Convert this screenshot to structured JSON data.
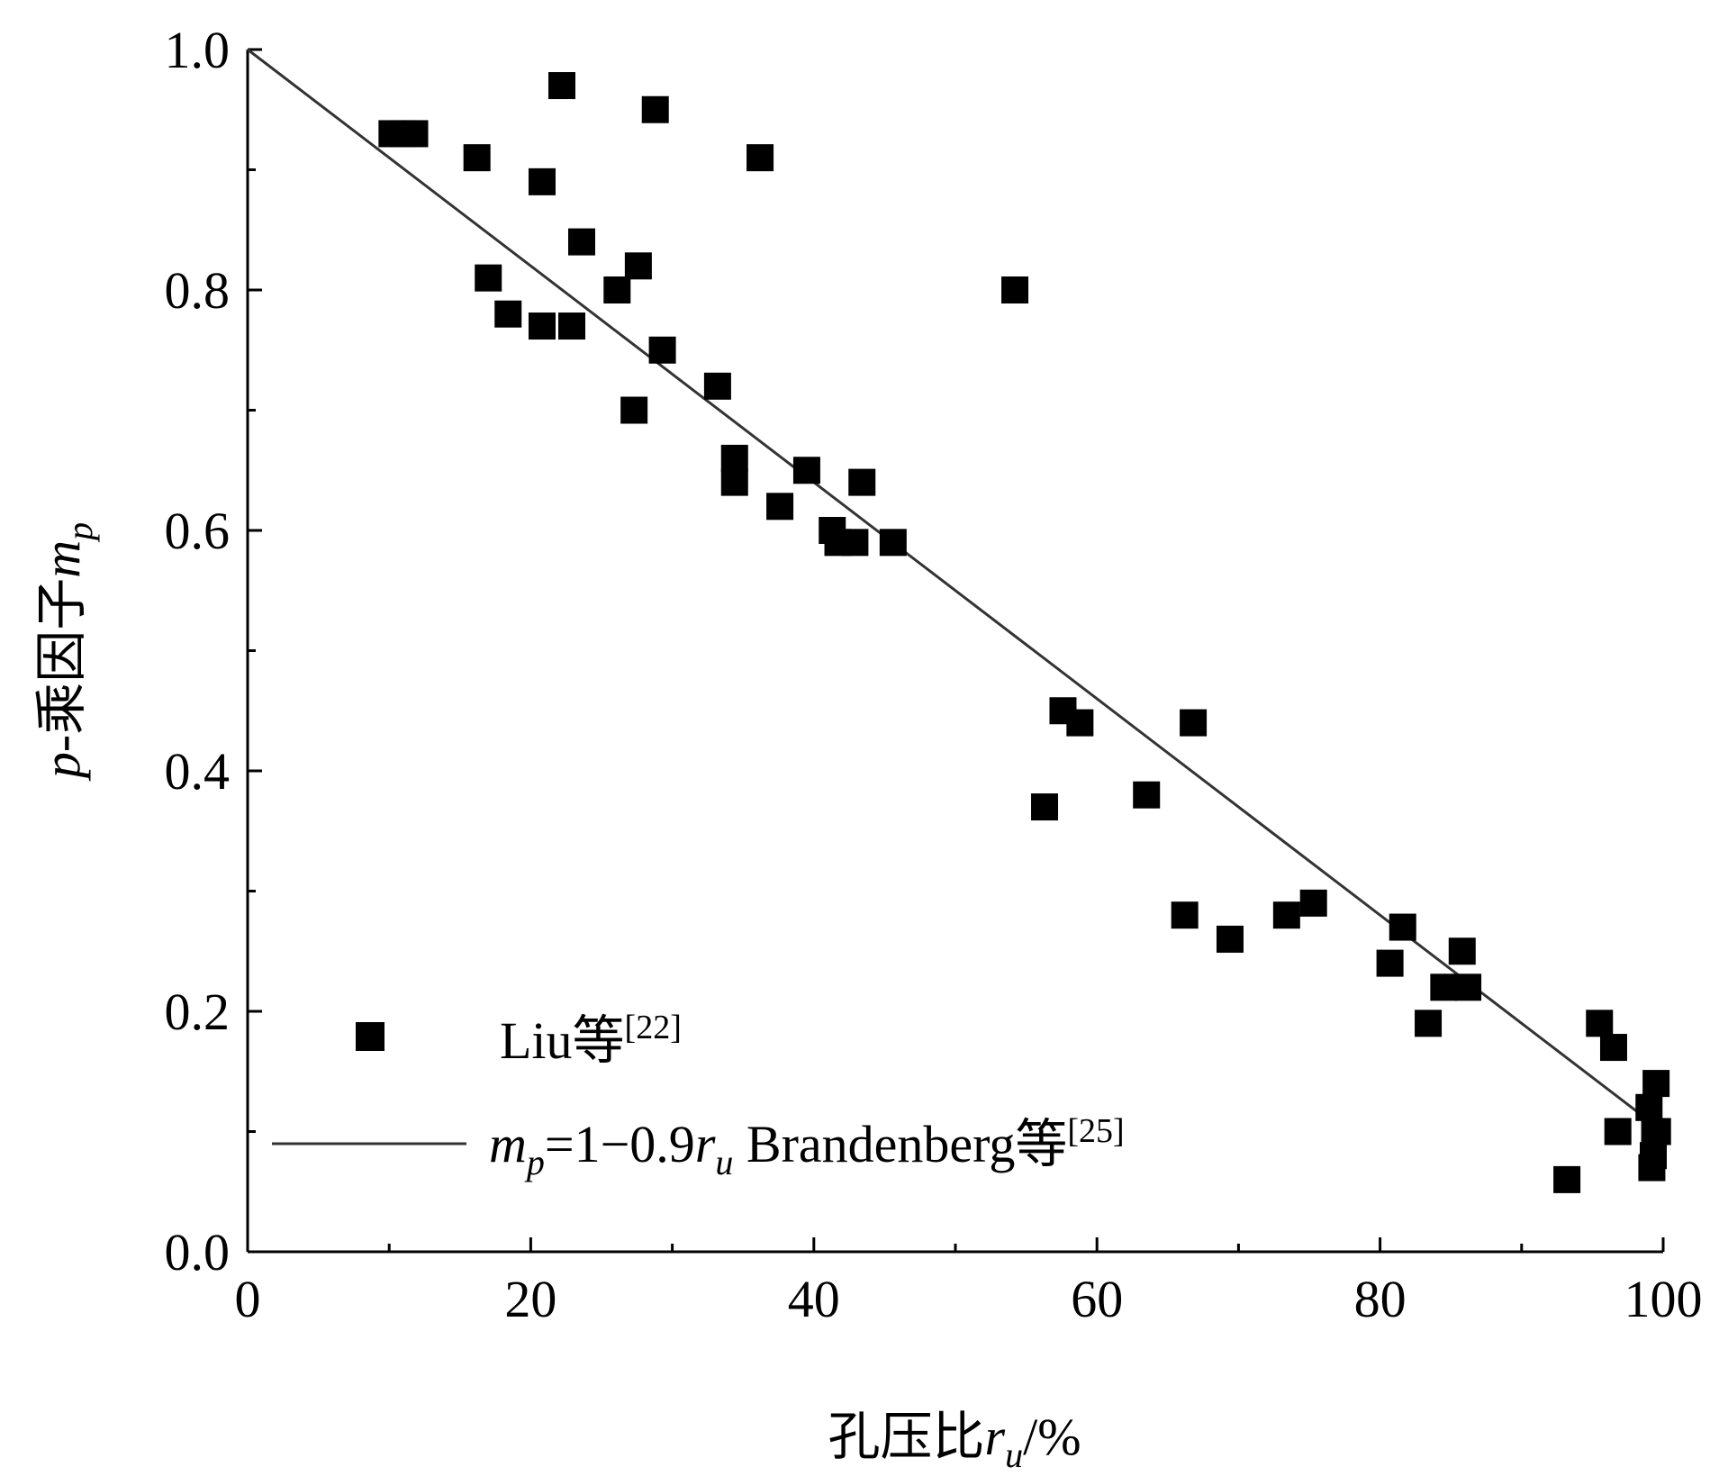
{
  "chart_data": {
    "type": "scatter",
    "title": "",
    "xlabel": {
      "prefix": "孔压比",
      "var": "r",
      "sub": "u",
      "suffix": "/%"
    },
    "ylabel": {
      "prefix": "p",
      "mid": "-乘因子",
      "var": "m",
      "sub": "p"
    },
    "xlim": [
      0,
      100
    ],
    "ylim": [
      0.0,
      1.0
    ],
    "xticks": [
      "0",
      "20",
      "40",
      "60",
      "80",
      "100"
    ],
    "yticks": [
      "0.0",
      "0.2",
      "0.4",
      "0.6",
      "0.8",
      "1.0"
    ],
    "legend_position": "bottom-left",
    "series": [
      {
        "name": "Liu等",
        "ref": "[22]",
        "marker": "square",
        "color": "#000000",
        "points": [
          [
            10.2,
            0.93
          ],
          [
            11.0,
            0.93
          ],
          [
            11.8,
            0.93
          ],
          [
            16.2,
            0.91
          ],
          [
            17.0,
            0.81
          ],
          [
            18.4,
            0.78
          ],
          [
            20.8,
            0.89
          ],
          [
            20.8,
            0.77
          ],
          [
            22.2,
            0.97
          ],
          [
            22.9,
            0.77
          ],
          [
            23.6,
            0.84
          ],
          [
            26.1,
            0.8
          ],
          [
            27.3,
            0.7
          ],
          [
            27.6,
            0.82
          ],
          [
            28.8,
            0.95
          ],
          [
            29.3,
            0.75
          ],
          [
            33.2,
            0.72
          ],
          [
            34.4,
            0.66
          ],
          [
            34.4,
            0.64
          ],
          [
            36.2,
            0.91
          ],
          [
            37.6,
            0.62
          ],
          [
            39.5,
            0.65
          ],
          [
            41.3,
            0.6
          ],
          [
            41.7,
            0.59
          ],
          [
            42.9,
            0.59
          ],
          [
            43.4,
            0.64
          ],
          [
            45.6,
            0.59
          ],
          [
            54.2,
            0.8
          ],
          [
            56.3,
            0.37
          ],
          [
            57.6,
            0.45
          ],
          [
            58.8,
            0.44
          ],
          [
            63.5,
            0.38
          ],
          [
            66.2,
            0.28
          ],
          [
            66.8,
            0.44
          ],
          [
            69.4,
            0.26
          ],
          [
            73.4,
            0.28
          ],
          [
            75.3,
            0.29
          ],
          [
            80.7,
            0.24
          ],
          [
            81.6,
            0.27
          ],
          [
            83.4,
            0.19
          ],
          [
            84.5,
            0.22
          ],
          [
            85.8,
            0.25
          ],
          [
            86.2,
            0.22
          ],
          [
            93.2,
            0.06
          ],
          [
            95.5,
            0.19
          ],
          [
            96.5,
            0.17
          ],
          [
            96.8,
            0.1
          ],
          [
            99.0,
            0.12
          ],
          [
            99.2,
            0.07
          ],
          [
            99.3,
            0.08
          ],
          [
            99.4,
            0.1
          ],
          [
            99.5,
            0.14
          ],
          [
            99.6,
            0.1
          ]
        ]
      },
      {
        "name_parts": {
          "var": "m",
          "sub": "p",
          "eq": "=1−0.9",
          "var2": "r",
          "sub2": "u",
          "tail": " Brandenberg等"
        },
        "ref": "[25]",
        "marker": "line",
        "color": "#333333",
        "equation": {
          "intercept": 1.0,
          "slope_per_percent": -0.009
        },
        "x_range": [
          0,
          100
        ]
      }
    ]
  }
}
